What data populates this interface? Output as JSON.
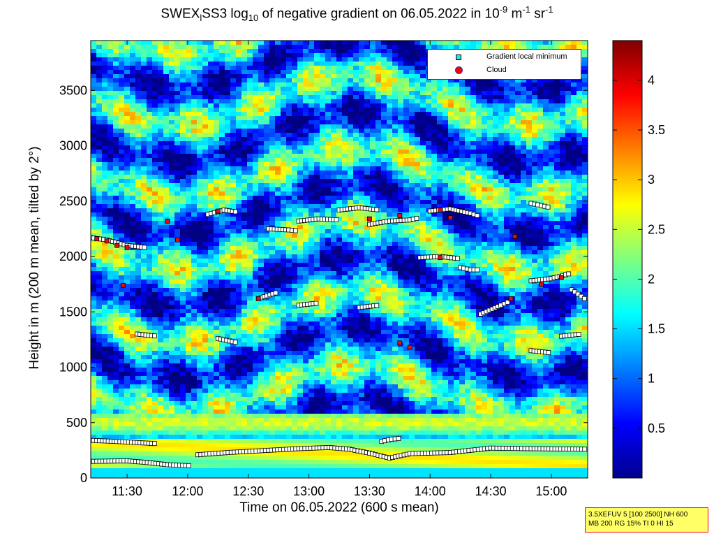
{
  "chart_data": {
    "type": "heatmap",
    "title": {
      "prefix": "SWEX",
      "subscript_l": "l",
      "mid": "SS3 log",
      "subscript_10": "10",
      "main": " of negative gradient on 06.05.2022 in 10",
      "exp1": "-9",
      "unit1": " m",
      "exp2": "-1",
      "unit2": " sr",
      "exp3": "-1"
    },
    "xlabel": "Time on 06.05.2022 (600 s mean)",
    "ylabel": "Height in m (200 m mean, tilted by 2°)",
    "x_range": [
      "11:12",
      "15:18"
    ],
    "x_ticks": [
      "11:30",
      "12:00",
      "12:30",
      "13:00",
      "13:30",
      "14:00",
      "14:30",
      "15:00"
    ],
    "y_range": [
      0,
      3950
    ],
    "y_ticks": [
      0,
      500,
      1000,
      1500,
      2000,
      2500,
      3000,
      3500
    ],
    "colorbar": {
      "range": [
        0,
        4.4
      ],
      "ticks": [
        "0.5",
        "1",
        "1.5",
        "2",
        "2.5",
        "3",
        "3.5",
        "4"
      ],
      "colormap": "jet"
    },
    "legend": {
      "position": "top-right",
      "entries": [
        {
          "label": "Gradient local minimum",
          "marker": "cyan-square",
          "color": "#33e0e8"
        },
        {
          "label": "Cloud",
          "marker": "red-dot",
          "color": "#ff0000"
        }
      ]
    },
    "series": [
      {
        "name": "Gradient local minimum",
        "lines": [
          {
            "t": [
              "11:12",
              "11:30",
              "11:40",
              "11:50",
              "12:02"
            ],
            "h": [
              150,
              155,
              140,
              120,
              110
            ]
          },
          {
            "t": [
              "11:12",
              "11:25",
              "11:35",
              "11:45"
            ],
            "h": [
              340,
              330,
              320,
              310
            ]
          },
          {
            "t": [
              "12:05",
              "12:20",
              "12:40",
              "12:55",
              "13:10",
              "13:20",
              "13:30",
              "13:40",
              "13:50",
              "14:10",
              "14:30",
              "14:50",
              "15:18"
            ],
            "h": [
              210,
              230,
              250,
              265,
              275,
              260,
              225,
              180,
              220,
              230,
              270,
              265,
              260
            ]
          },
          {
            "t": [
              "13:36",
              "13:41",
              "13:46"
            ],
            "h": [
              330,
              350,
              360
            ]
          },
          {
            "t": [
              "11:12",
              "11:20",
              "11:30",
              "11:40"
            ],
            "h": [
              2170,
              2150,
              2100,
              2080
            ]
          },
          {
            "t": [
              "12:10",
              "12:18",
              "12:25"
            ],
            "h": [
              2380,
              2420,
              2400
            ]
          },
          {
            "t": [
              "12:40",
              "12:50",
              "12:55"
            ],
            "h": [
              2250,
              2240,
              2230
            ]
          },
          {
            "t": [
              "12:55",
              "13:05",
              "13:15"
            ],
            "h": [
              2320,
              2340,
              2330
            ]
          },
          {
            "t": [
              "13:15",
              "13:25",
              "13:35"
            ],
            "h": [
              2420,
              2440,
              2420
            ]
          },
          {
            "t": [
              "13:30",
              "13:40",
              "13:50",
              "13:55"
            ],
            "h": [
              2290,
              2320,
              2330,
              2350
            ]
          },
          {
            "t": [
              "14:00",
              "14:10",
              "14:20",
              "14:25"
            ],
            "h": [
              2410,
              2430,
              2390,
              2360
            ]
          },
          {
            "t": [
              "14:50",
              "14:55",
              "15:00"
            ],
            "h": [
              2480,
              2460,
              2440
            ]
          },
          {
            "t": [
              "13:55",
              "14:05",
              "14:15"
            ],
            "h": [
              1990,
              2000,
              1980
            ]
          },
          {
            "t": [
              "14:15",
              "14:20",
              "14:25"
            ],
            "h": [
              1900,
              1880,
              1880
            ]
          },
          {
            "t": [
              "14:50",
              "15:00",
              "15:10"
            ],
            "h": [
              1780,
              1800,
              1850
            ]
          },
          {
            "t": [
              "12:35",
              "12:45"
            ],
            "h": [
              1620,
              1680
            ]
          },
          {
            "t": [
              "12:55",
              "13:05"
            ],
            "h": [
              1560,
              1580
            ]
          },
          {
            "t": [
              "13:25",
              "13:35"
            ],
            "h": [
              1540,
              1560
            ]
          },
          {
            "t": [
              "14:25",
              "14:35",
              "14:40"
            ],
            "h": [
              1480,
              1560,
              1600
            ]
          },
          {
            "t": [
              "11:35",
              "11:45"
            ],
            "h": [
              1300,
              1280
            ]
          },
          {
            "t": [
              "12:15",
              "12:25"
            ],
            "h": [
              1260,
              1220
            ]
          },
          {
            "t": [
              "15:05",
              "15:15"
            ],
            "h": [
              1280,
              1300
            ]
          },
          {
            "t": [
              "14:50",
              "15:00"
            ],
            "h": [
              1150,
              1130
            ]
          },
          {
            "t": [
              "15:10",
              "15:18"
            ],
            "h": [
              1700,
              1600
            ]
          }
        ]
      },
      {
        "name": "Cloud",
        "points": [
          {
            "t": "11:15",
            "h": 2160
          },
          {
            "t": "11:20",
            "h": 2140
          },
          {
            "t": "11:25",
            "h": 2100
          },
          {
            "t": "11:30",
            "h": 2080
          },
          {
            "t": "11:28",
            "h": 1740
          },
          {
            "t": "11:50",
            "h": 2320
          },
          {
            "t": "11:55",
            "h": 2150
          },
          {
            "t": "12:15",
            "h": 2410
          },
          {
            "t": "12:35",
            "h": 1620
          },
          {
            "t": "13:30",
            "h": 2340
          },
          {
            "t": "13:45",
            "h": 2370
          },
          {
            "t": "13:50",
            "h": 1180
          },
          {
            "t": "13:45",
            "h": 1220
          },
          {
            "t": "14:05",
            "h": 2420
          },
          {
            "t": "14:10",
            "h": 2350
          },
          {
            "t": "14:40",
            "h": 1620
          },
          {
            "t": "14:42",
            "h": 2180
          },
          {
            "t": "14:55",
            "h": 1750
          },
          {
            "t": "15:05",
            "h": 1810
          },
          {
            "t": "14:05",
            "h": 1990
          }
        ]
      }
    ]
  },
  "info_box": {
    "line1": "3.5XEFUV 5 [100 2500] NH 600",
    "line2": "MB 200 RG 15% TI 0 HI 15"
  }
}
